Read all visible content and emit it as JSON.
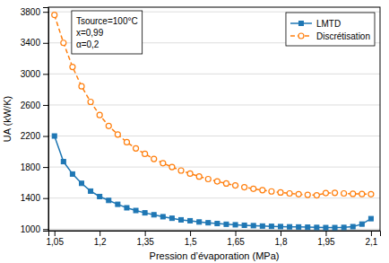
{
  "chart_data": {
    "type": "line",
    "xlabel": "Pression d’évaporation (MPa)",
    "ylabel": "UA (kW/K)",
    "xlim": [
      1.03,
      2.13
    ],
    "ylim": [
      980,
      3860
    ],
    "xticks": [
      {
        "value": 1.05,
        "label": "1,05"
      },
      {
        "value": 1.2,
        "label": "1,2"
      },
      {
        "value": 1.35,
        "label": "1,35"
      },
      {
        "value": 1.5,
        "label": "1,5"
      },
      {
        "value": 1.65,
        "label": "1,65"
      },
      {
        "value": 1.8,
        "label": "1,8"
      },
      {
        "value": 1.95,
        "label": "1,95"
      },
      {
        "value": 2.1,
        "label": "2,1"
      }
    ],
    "yticks": [
      1000,
      1400,
      1800,
      2200,
      2600,
      3000,
      3400,
      3800
    ],
    "grid": true,
    "legend": "upper right",
    "annotation": [
      "Tsource=100°C",
      "x=0,99",
      "α=0,2"
    ],
    "x": [
      1.05,
      1.08,
      1.11,
      1.14,
      1.17,
      1.2,
      1.23,
      1.26,
      1.29,
      1.32,
      1.35,
      1.38,
      1.41,
      1.44,
      1.47,
      1.5,
      1.53,
      1.56,
      1.59,
      1.62,
      1.65,
      1.68,
      1.71,
      1.74,
      1.77,
      1.8,
      1.83,
      1.86,
      1.89,
      1.92,
      1.95,
      1.98,
      2.01,
      2.04,
      2.07,
      2.1
    ],
    "series": [
      {
        "name": "LMTD",
        "marker": "square",
        "line_style": "solid",
        "values": [
          2200,
          1870,
          1710,
          1590,
          1490,
          1420,
          1370,
          1320,
          1275,
          1240,
          1210,
          1185,
          1160,
          1140,
          1120,
          1108,
          1092,
          1082,
          1072,
          1063,
          1056,
          1050,
          1045,
          1040,
          1036,
          1033,
          1030,
          1028,
          1025,
          1022,
          1020,
          1020,
          1022,
          1032,
          1065,
          1135
        ]
      },
      {
        "name": "Discrétisation",
        "marker": "circle",
        "line_style": "dashed",
        "values": [
          3760,
          3400,
          3090,
          2840,
          2640,
          2470,
          2330,
          2220,
          2120,
          2040,
          1970,
          1905,
          1850,
          1800,
          1755,
          1715,
          1678,
          1645,
          1615,
          1588,
          1563,
          1540,
          1520,
          1502,
          1486,
          1472,
          1460,
          1450,
          1442,
          1436,
          1465,
          1468,
          1460,
          1455,
          1452,
          1450
        ]
      }
    ]
  }
}
